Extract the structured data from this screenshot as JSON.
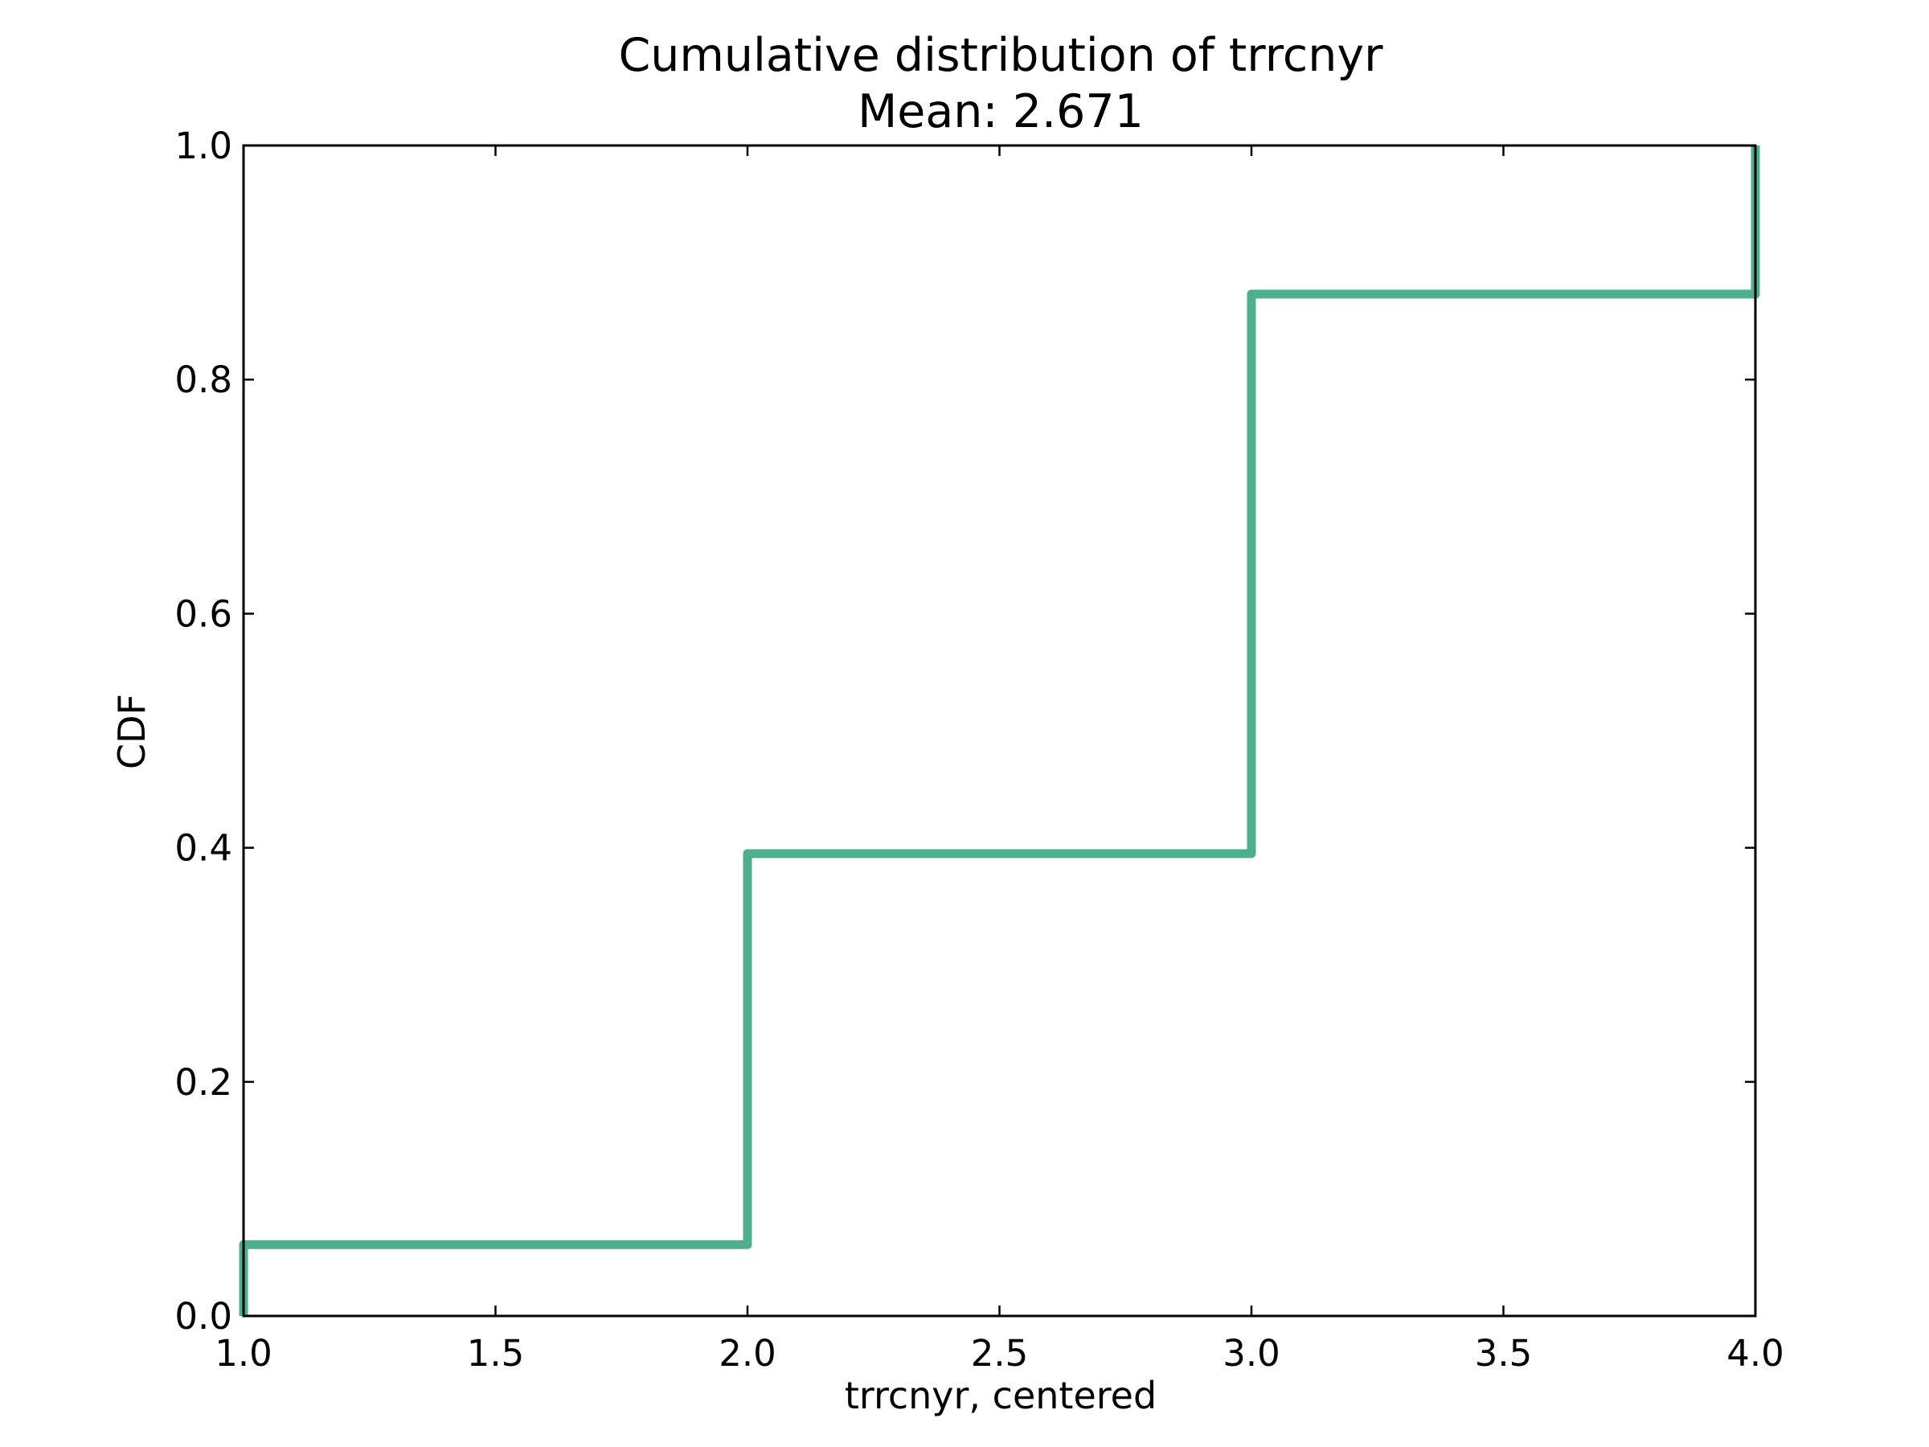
{
  "chart_data": {
    "type": "line",
    "step": true,
    "title": "Cumulative distribution of trrcnyr",
    "subtitle": "Mean: 2.671",
    "xlabel": "trrcnyr, centered",
    "ylabel": "CDF",
    "xlim": [
      1.0,
      4.0
    ],
    "ylim": [
      0.0,
      1.0
    ],
    "xticks": [
      "1.0",
      "1.5",
      "2.0",
      "2.5",
      "3.0",
      "3.5",
      "4.0"
    ],
    "yticks": [
      "0.0",
      "0.2",
      "0.4",
      "0.6",
      "0.8",
      "1.0"
    ],
    "grid": false,
    "legend": "none",
    "series": [
      {
        "color": "#4daf8f",
        "x": [
          1.0,
          1.0,
          2.0,
          2.0,
          3.0,
          3.0,
          4.0,
          4.0
        ],
        "y": [
          0.0,
          0.061,
          0.061,
          0.395,
          0.395,
          0.873,
          0.873,
          1.0
        ]
      }
    ]
  }
}
